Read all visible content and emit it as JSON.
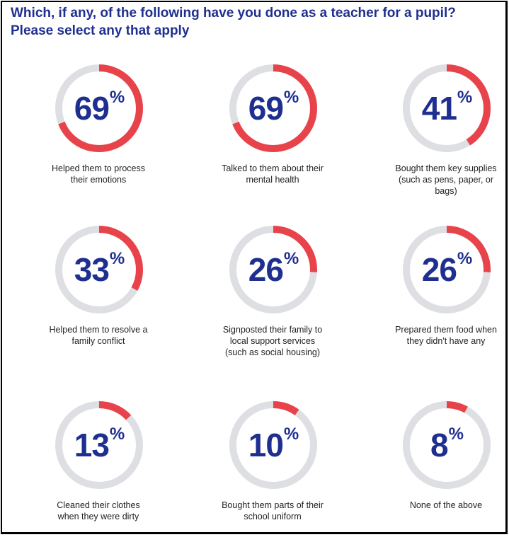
{
  "title": {
    "line1": "Which, if any, of the following have you done as a teacher for a pupil?",
    "line2": "Please select any that apply"
  },
  "colors": {
    "accent": "#e8434a",
    "track": "#dedfe3",
    "number": "#1f2f8f"
  },
  "chart_data": {
    "type": "donut-grid",
    "title": "Which, if any, of the following have you done as a teacher for a pupil? Please select any that apply",
    "unit": "%",
    "items": [
      {
        "label": "Helped them to process their emotions",
        "value": 69
      },
      {
        "label": "Talked to them about their mental health",
        "value": 69
      },
      {
        "label": "Bought them key supplies (such as pens, paper, or bags)",
        "value": 41
      },
      {
        "label": "Helped them to resolve a family conflict",
        "value": 33
      },
      {
        "label": "Signposted their family to local support services (such as social housing)",
        "value": 26
      },
      {
        "label": "Prepared them food when they didn't have any",
        "value": 26
      },
      {
        "label": "Cleaned their clothes when they were dirty",
        "value": 13
      },
      {
        "label": "Bought them parts of their school uniform",
        "value": 10
      },
      {
        "label": "None of the above",
        "value": 8
      }
    ]
  }
}
